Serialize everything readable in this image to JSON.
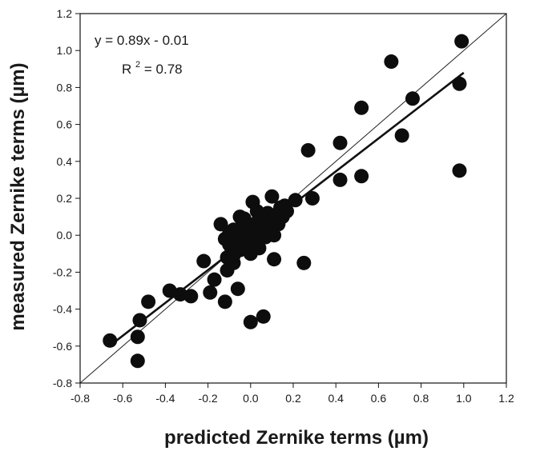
{
  "chart_data": {
    "type": "scatter",
    "title": "",
    "xlabel": "predicted Zernike terms (µm)",
    "ylabel": "measured Zernike terms (µm)",
    "xlim": [
      -0.8,
      1.2
    ],
    "ylim": [
      -0.8,
      1.2
    ],
    "x_ticks": [
      "-0.8",
      "-0.6",
      "-0.4",
      "-0.2",
      "0.0",
      "0.2",
      "0.4",
      "0.6",
      "0.8",
      "1.0",
      "1.2"
    ],
    "y_ticks": [
      "-0.8",
      "-0.6",
      "-0.4",
      "-0.2",
      "0.0",
      "0.2",
      "0.4",
      "0.6",
      "0.8",
      "1.0",
      "1.2"
    ],
    "grid": false,
    "annotations": {
      "equation": "y = 0.89x - 0.01",
      "r2_prefix": "R",
      "r2_exponent": "2",
      "r2_value": " = 0.78"
    },
    "regression": {
      "slope": 0.89,
      "intercept": -0.01,
      "x_range": [
        -0.66,
        1.0
      ]
    },
    "identity_line": {
      "x_range": [
        -0.8,
        1.2
      ]
    },
    "points": [
      [
        -0.66,
        -0.57
      ],
      [
        -0.53,
        -0.68
      ],
      [
        -0.53,
        -0.55
      ],
      [
        -0.52,
        -0.46
      ],
      [
        -0.48,
        -0.36
      ],
      [
        -0.38,
        -0.3
      ],
      [
        -0.33,
        -0.32
      ],
      [
        -0.28,
        -0.33
      ],
      [
        -0.22,
        -0.14
      ],
      [
        -0.19,
        -0.31
      ],
      [
        -0.17,
        -0.24
      ],
      [
        -0.14,
        0.06
      ],
      [
        -0.12,
        -0.36
      ],
      [
        -0.11,
        -0.19
      ],
      [
        -0.1,
        -0.05
      ],
      [
        -0.08,
        -0.15
      ],
      [
        -0.06,
        -0.29
      ],
      [
        -0.05,
        0.1
      ],
      [
        0.0,
        -0.47
      ],
      [
        0.06,
        -0.44
      ],
      [
        0.11,
        -0.13
      ],
      [
        0.25,
        -0.15
      ],
      [
        0.01,
        0.18
      ],
      [
        0.1,
        0.21
      ],
      [
        0.14,
        0.15
      ],
      [
        0.17,
        0.13
      ],
      [
        0.21,
        0.19
      ],
      [
        0.29,
        0.2
      ],
      [
        0.27,
        0.46
      ],
      [
        0.42,
        0.5
      ],
      [
        0.42,
        0.3
      ],
      [
        0.52,
        0.69
      ],
      [
        0.52,
        0.32
      ],
      [
        0.66,
        0.94
      ],
      [
        0.71,
        0.54
      ],
      [
        0.76,
        0.74
      ],
      [
        0.99,
        1.05
      ],
      [
        0.98,
        0.82
      ],
      [
        0.98,
        0.35
      ],
      [
        -0.12,
        -0.02
      ],
      [
        -0.1,
        0.01
      ],
      [
        -0.09,
        -0.07
      ],
      [
        -0.08,
        0.03
      ],
      [
        -0.07,
        -0.04
      ],
      [
        -0.06,
        0.0
      ],
      [
        -0.05,
        -0.08
      ],
      [
        -0.04,
        0.05
      ],
      [
        -0.03,
        -0.02
      ],
      [
        -0.02,
        0.02
      ],
      [
        -0.01,
        -0.05
      ],
      [
        0.0,
        0.01
      ],
      [
        0.01,
        0.05
      ],
      [
        0.02,
        -0.03
      ],
      [
        0.03,
        0.07
      ],
      [
        0.04,
        -0.07
      ],
      [
        0.05,
        0.03
      ],
      [
        0.06,
        0.09
      ],
      [
        0.07,
        -0.01
      ],
      [
        0.08,
        0.12
      ],
      [
        0.09,
        0.04
      ],
      [
        0.1,
        0.08
      ],
      [
        0.12,
        0.11
      ],
      [
        0.13,
        0.06
      ],
      [
        0.15,
        0.1
      ],
      [
        0.16,
        0.16
      ],
      [
        0.03,
        0.13
      ],
      [
        -0.03,
        0.09
      ],
      [
        -0.08,
        -0.11
      ],
      [
        -0.11,
        -0.12
      ],
      [
        0.0,
        -0.1
      ],
      [
        0.04,
        0.0
      ],
      [
        -0.06,
        -0.03
      ],
      [
        0.11,
        0.0
      ],
      [
        0.07,
        0.05
      ]
    ]
  }
}
